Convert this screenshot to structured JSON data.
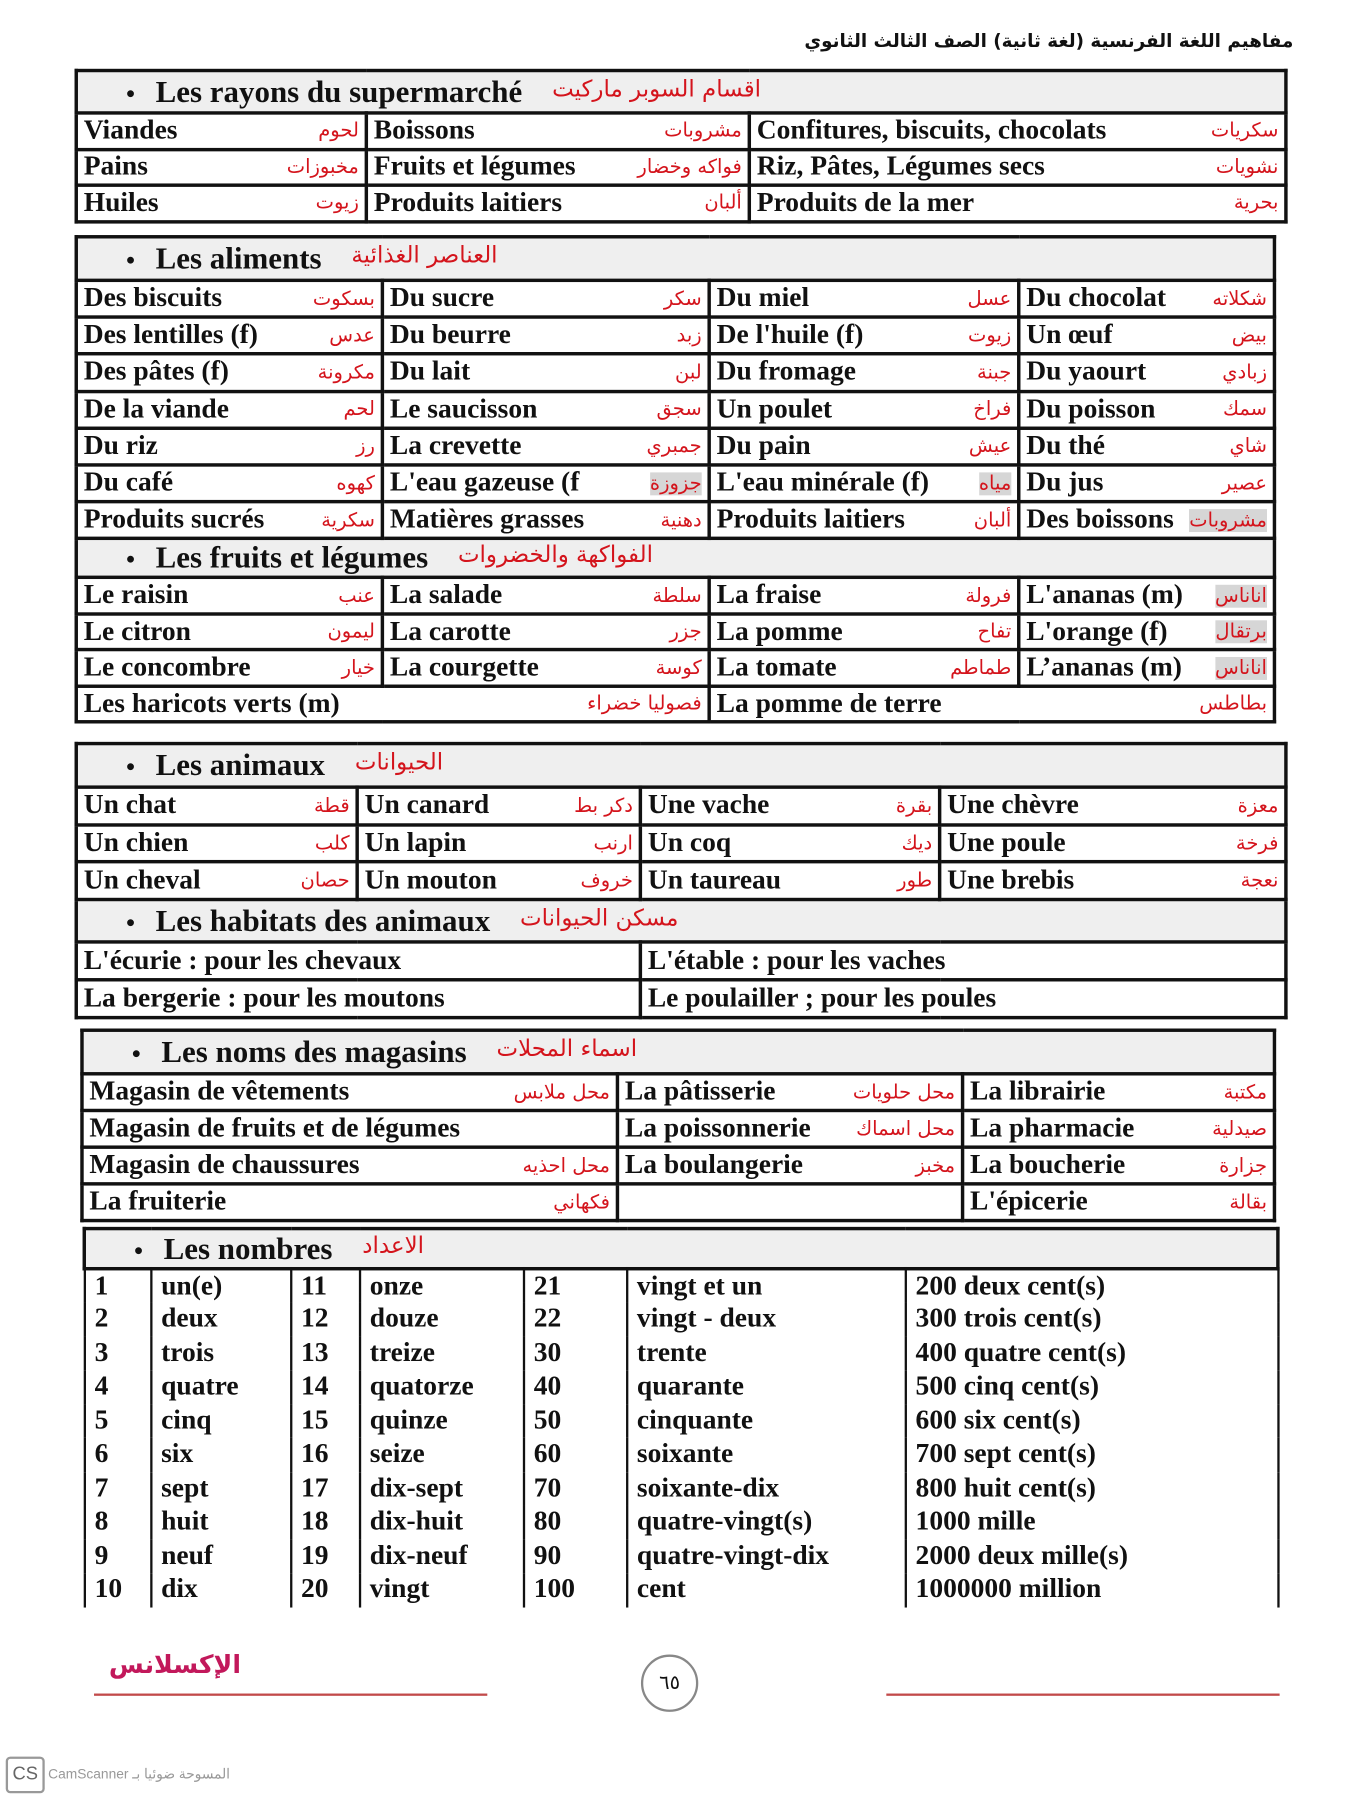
{
  "header": {
    "title": "مفاهيم اللغة الفرنسية (لغة ثانية) الصف الثالث الثانوي"
  },
  "blocks": [
    {
      "sections": [
        {
          "title_fr": "Les rayons du supermarché",
          "title_ar": "اقسام السوبر ماركيت",
          "rows": [
            [
              {
                "fr": "Viandes",
                "ar": "لحوم"
              },
              {
                "fr": "Boissons",
                "ar": "مشروبات"
              },
              {
                "fr": "Confitures, biscuits, chocolats",
                "ar": "سكريات"
              }
            ],
            [
              {
                "fr": "Pains",
                "ar": "مخبوزات"
              },
              {
                "fr": "Fruits et légumes",
                "ar": "فواكه وخضار"
              },
              {
                "fr": "Riz, Pâtes, Légumes secs",
                "ar": "نشويات"
              }
            ],
            [
              {
                "fr": "Huiles",
                "ar": "زيوت"
              },
              {
                "fr": "Produits laitiers",
                "ar": "ألبان"
              },
              {
                "fr": "Produits de la mer",
                "ar": "بحرية"
              }
            ]
          ]
        }
      ]
    },
    {
      "sections": [
        {
          "title_fr": "Les aliments",
          "title_ar": "العناصر الغذائية",
          "rows": [
            [
              {
                "fr": "Des biscuits",
                "ar": "بسكوت"
              },
              {
                "fr": "Du sucre",
                "ar": "سكر"
              },
              {
                "fr": "Du miel",
                "ar": "عسل"
              },
              {
                "fr": "Du chocolat",
                "ar": "شكلاته"
              }
            ],
            [
              {
                "fr": "Des lentilles (f)",
                "ar": "عدس"
              },
              {
                "fr": "Du beurre",
                "ar": "زبد"
              },
              {
                "fr": "De l'huile (f)",
                "ar": "زيوت"
              },
              {
                "fr": "Un œuf",
                "ar": "بيض"
              }
            ],
            [
              {
                "fr": "Des pâtes (f)",
                "ar": "مكرونة"
              },
              {
                "fr": "Du lait",
                "ar": "لبن"
              },
              {
                "fr": "Du fromage",
                "ar": "جبنة"
              },
              {
                "fr": "Du yaourt",
                "ar": "زبادي"
              }
            ],
            [
              {
                "fr": "De la viande",
                "ar": "لحم"
              },
              {
                "fr": "Le saucisson",
                "ar": "سجق"
              },
              {
                "fr": "Un poulet",
                "ar": "فراخ"
              },
              {
                "fr": "Du poisson",
                "ar": "سمك"
              }
            ],
            [
              {
                "fr": "Du riz",
                "ar": "رز"
              },
              {
                "fr": "La crevette",
                "ar": "جمبري"
              },
              {
                "fr": "Du pain",
                "ar": "عيش"
              },
              {
                "fr": "Du thé",
                "ar": "شاي"
              }
            ],
            [
              {
                "fr": "Du café",
                "ar": "كهوه"
              },
              {
                "fr": "L'eau gazeuse    (f",
                "ar": "جزوزة",
                "hl": true
              },
              {
                "fr": "L'eau minérale (f)",
                "ar": "مياه",
                "hl": true
              },
              {
                "fr": "Du jus",
                "ar": "عصير"
              }
            ],
            [
              {
                "fr": "Produits sucrés",
                "ar": "سكرية"
              },
              {
                "fr": "Matières grasses",
                "ar": "دهنية"
              },
              {
                "fr": "Produits laitiers",
                "ar": "ألبان"
              },
              {
                "fr": "Des boissons",
                "ar": "مشروبات",
                "hl": true
              }
            ]
          ]
        },
        {
          "title_fr": "Les fruits et légumes",
          "title_ar": "الفواكهة والخضروات",
          "rows": [
            [
              {
                "fr": "Le raisin",
                "ar": "عنب"
              },
              {
                "fr": "La salade",
                "ar": "سلطة"
              },
              {
                "fr": "La fraise",
                "ar": "فرولة"
              },
              {
                "fr": "L'ananas (m)",
                "ar": "اناناس",
                "hl": true
              }
            ],
            [
              {
                "fr": "Le citron",
                "ar": "ليمون"
              },
              {
                "fr": "La carotte",
                "ar": "جزر"
              },
              {
                "fr": "La pomme",
                "ar": "تفاح"
              },
              {
                "fr": "L'orange (f)",
                "ar": "برتقال",
                "hl": true
              }
            ],
            [
              {
                "fr": "Le concombre",
                "ar": "خيار"
              },
              {
                "fr": "La courgette",
                "ar": "كوسة"
              },
              {
                "fr": "La tomate",
                "ar": "طماطم"
              },
              {
                "fr": "L’ananas (m)",
                "ar": "اناناس",
                "hl": true
              }
            ],
            [
              {
                "fr": "Les haricots verts (m)",
                "ar": "فصوليا خضراء",
                "span": 2
              },
              {
                "fr": "La pomme de terre",
                "ar": "بطاطس",
                "span": 2
              }
            ]
          ]
        }
      ]
    },
    {
      "sections": [
        {
          "title_fr": "Les animaux",
          "title_ar": "الحيوانات",
          "rows": [
            [
              {
                "fr": "Un chat",
                "ar": "قطة"
              },
              {
                "fr": "Un canard",
                "ar": "دكر بط"
              },
              {
                "fr": "Une vache",
                "ar": "بقرة"
              },
              {
                "fr": "Une chèvre",
                "ar": "معزة"
              }
            ],
            [
              {
                "fr": "Un chien",
                "ar": "كلب"
              },
              {
                "fr": "Un lapin",
                "ar": "ارنب"
              },
              {
                "fr": "Un coq",
                "ar": "ديك"
              },
              {
                "fr": "Une poule",
                "ar": "فرخة"
              }
            ],
            [
              {
                "fr": "Un cheval",
                "ar": "حصان"
              },
              {
                "fr": "Un mouton",
                "ar": "خروف"
              },
              {
                "fr": "Un taureau",
                "ar": "طور"
              },
              {
                "fr": "Une brebis",
                "ar": "نعجة"
              }
            ]
          ]
        },
        {
          "title_fr": "Les habitats des animaux",
          "title_ar": "مسكن الحيوانات",
          "rows": [
            [
              {
                "fr": "L'écurie      : pour les chevaux",
                "span": 2
              },
              {
                "fr": "L'étable      : pour les vaches",
                "span": 2
              }
            ],
            [
              {
                "fr": "La bergerie : pour les moutons",
                "span": 2
              },
              {
                "fr": "Le poulailler ; pour les poules",
                "span": 2
              }
            ]
          ]
        }
      ]
    },
    {
      "sections": [
        {
          "title_fr": "Les noms des magasins",
          "title_ar": "اسماء المحلات",
          "rows": [
            [
              {
                "fr": "Magasin de vêtements",
                "ar": "محل ملابس"
              },
              {
                "fr": "La pâtisserie",
                "ar": "محل حلويات"
              },
              {
                "fr": "La librairie",
                "ar": "مكتبة"
              }
            ],
            [
              {
                "fr": "Magasin de fruits et de légumes",
                "ar": ""
              },
              {
                "fr": "La poissonnerie",
                "ar": "محل اسماك"
              },
              {
                "fr": "La pharmacie",
                "ar": "صيدلية"
              }
            ],
            [
              {
                "fr": "Magasin de chaussures",
                "ar": "محل احذيه"
              },
              {
                "fr": "La boulangerie",
                "ar": "مخبز"
              },
              {
                "fr": "La boucherie",
                "ar": "جزارة"
              }
            ],
            [
              {
                "fr": "La fruiterie",
                "ar": "فكهاني"
              },
              {
                "fr": "",
                "ar": ""
              },
              {
                "fr": "L'épicerie",
                "ar": "بقالة"
              }
            ]
          ]
        }
      ]
    }
  ],
  "numbers": {
    "title_fr": "Les nombres",
    "title_ar": "الاعداد",
    "rows": [
      [
        "1",
        "un(e)",
        "11",
        "onze",
        "21",
        "vingt et un",
        "200 deux cent(s)"
      ],
      [
        "2",
        "deux",
        "12",
        "douze",
        "22",
        "vingt - deux",
        "300 trois cent(s)"
      ],
      [
        "3",
        "trois",
        "13",
        "treize",
        "30",
        "trente",
        "400 quatre cent(s)"
      ],
      [
        "4",
        "quatre",
        "14",
        "quatorze",
        "40",
        "quarante",
        "500 cinq cent(s)"
      ],
      [
        "5",
        "cinq",
        "15",
        "quinze",
        "50",
        "cinquante",
        "600 six cent(s)"
      ],
      [
        "6",
        "six",
        "16",
        "seize",
        "60",
        "soixante",
        "700 sept cent(s)"
      ],
      [
        "7",
        "sept",
        "17",
        "dix-sept",
        "70",
        "soixante-dix",
        "800 huit cent(s)"
      ],
      [
        "8",
        "huit",
        "18",
        "dix-huit",
        "80",
        "quatre-vingt(s)",
        "1000 mille"
      ],
      [
        "9",
        "neuf",
        "19",
        "dix-neuf",
        "90",
        "quatre-vingt-dix",
        "2000 deux mille(s)"
      ],
      [
        "10",
        "dix",
        "20",
        "vingt",
        "100",
        "cent",
        "1000000 million"
      ]
    ]
  },
  "footer": {
    "brand": "الإكسلانس",
    "page_number": "٦٥",
    "scanner_logo": "CS",
    "scanner_text": "CamScanner المسوحة ضوئيا بـ"
  },
  "colors": {
    "text": "#111111",
    "arabic": "#d4141c",
    "header_bg": "#efefef",
    "brand": "#c2185b"
  }
}
